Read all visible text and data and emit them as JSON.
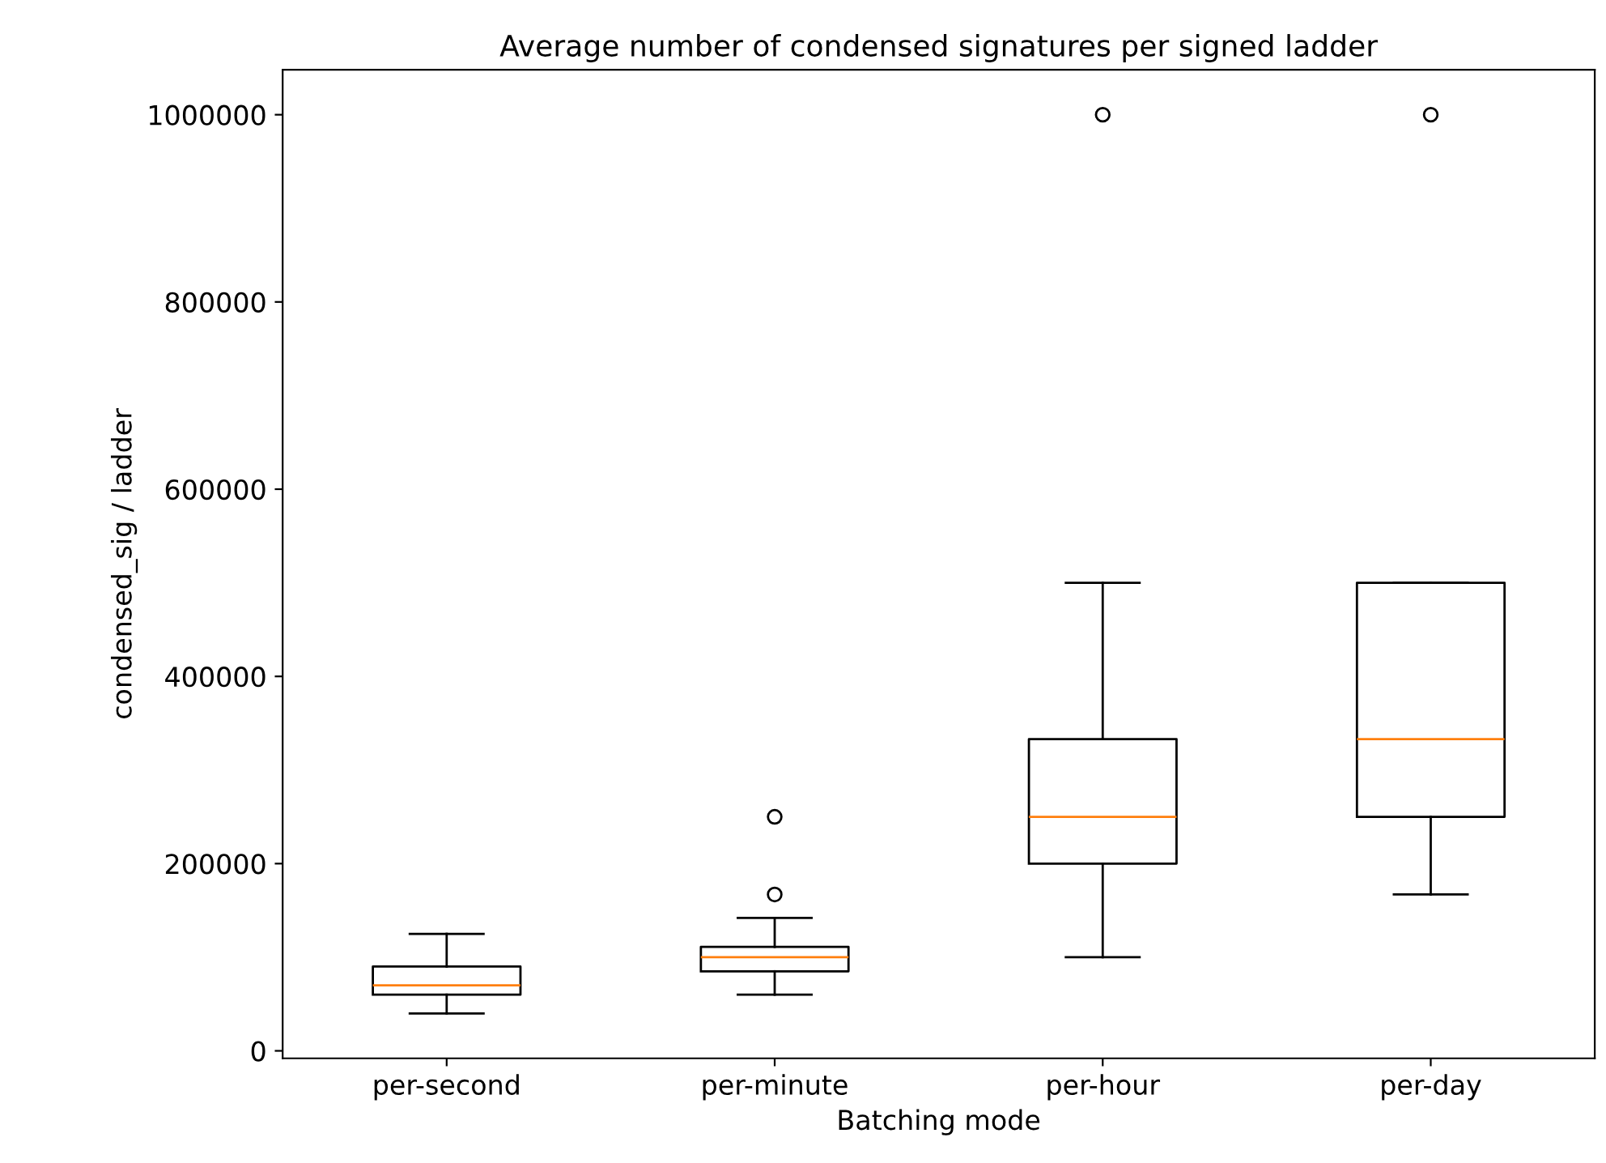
{
  "chart_data": {
    "type": "box",
    "title": "Average number of condensed signatures per signed ladder",
    "xlabel": "Batching mode",
    "ylabel": "condensed_sig / ladder",
    "categories": [
      "per-second",
      "per-minute",
      "per-hour",
      "per-day"
    ],
    "boxes": [
      {
        "low": 40000,
        "q1": 60000,
        "median": 70000,
        "q3": 90000,
        "high": 125000
      },
      {
        "low": 60000,
        "q1": 85000,
        "median": 100000,
        "q3": 111000,
        "high": 142000,
        "outliers": [
          167000,
          250000
        ]
      },
      {
        "low": 100000,
        "q1": 200000,
        "median": 250000,
        "q3": 333000,
        "high": 500000,
        "outliers": [
          1000000
        ]
      },
      {
        "low": 167000,
        "q1": 250000,
        "median": 333000,
        "q3": 500000,
        "high": 500000,
        "outliers": [
          1000000
        ]
      }
    ],
    "ylim": [
      -8000,
      1048000
    ],
    "yticks": [
      0,
      200000,
      400000,
      600000,
      800000,
      1000000
    ],
    "grid": false
  }
}
